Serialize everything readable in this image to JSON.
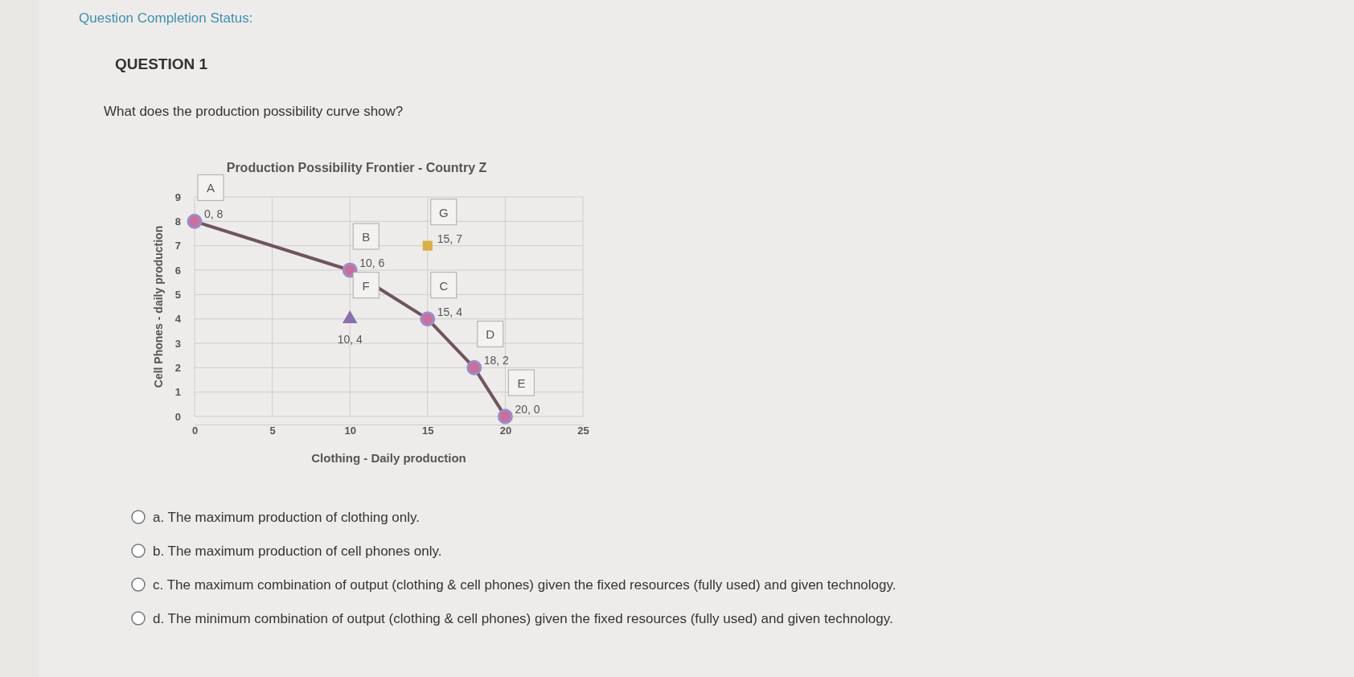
{
  "chart_data": {
    "type": "line",
    "title": "Production Possibility Frontier - Country Z",
    "xlabel": "Clothing - Daily production",
    "ylabel": "Cell Phones - daily production",
    "xlim": [
      0,
      25
    ],
    "xticks": [
      0,
      5,
      10,
      15,
      20,
      25
    ],
    "ylim": [
      0,
      9
    ],
    "yticks": [
      0,
      1,
      2,
      3,
      4,
      5,
      6,
      7,
      8,
      9
    ],
    "grid": true,
    "marker": "circle",
    "line_style": "solid",
    "series": [
      {
        "type": "line",
        "color": "#6e5560",
        "x": [
          0,
          10,
          15,
          18,
          20
        ],
        "values": [
          8,
          6,
          4,
          2,
          0
        ],
        "value_labels": [
          "0, 8",
          "10, 6",
          "15, 4",
          "18, 2",
          "20, 0"
        ]
      },
      {
        "type": "scatter",
        "marker": "triangle",
        "color": "#8a6fb0",
        "x": [
          10
        ],
        "values": [
          4
        ],
        "value_labels": [
          "10, 4"
        ]
      },
      {
        "type": "scatter",
        "marker": "square",
        "color": "#d9b048",
        "x": [
          15
        ],
        "values": [
          7
        ],
        "value_labels": [
          "15, 7"
        ]
      }
    ],
    "annotations": [
      "Question Completion Status:",
      "QUESTION 1",
      "What does the production possibility curve show?",
      "a. The maximum production of clothing only.",
      "b. The maximum production of cell phones only.",
      "c. The maximum combination of output (clothing & cell phones) given the fixed resources (fully used) and given technology.",
      "d. The minimum combination of output (clothing & cell phones) given the fixed resources (fully used) and given technology.",
      {
        "text": "A",
        "x": 0,
        "y": 8
      },
      {
        "text": "B",
        "x": 10,
        "y": 6
      },
      {
        "text": "C",
        "x": 15,
        "y": 4
      },
      {
        "text": "D",
        "x": 18,
        "y": 2
      },
      {
        "text": "E",
        "x": 20,
        "y": 0
      },
      {
        "text": "F",
        "x": 10,
        "y": 4
      },
      {
        "text": "G",
        "x": 15,
        "y": 7
      }
    ]
  }
}
